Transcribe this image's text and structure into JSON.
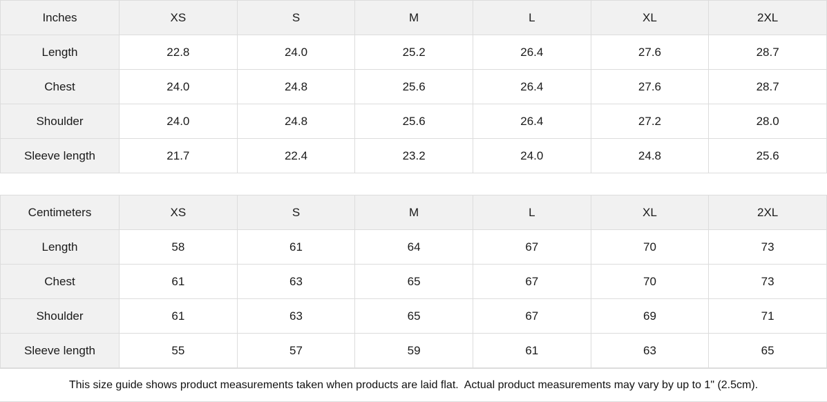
{
  "colors": {
    "header_bg": "#f1f1f1",
    "border": "#dcdcdc",
    "text": "#1a1a1a",
    "page_bg": "#ffffff"
  },
  "tables": [
    {
      "unit_label": "Inches",
      "columns": [
        "XS",
        "S",
        "M",
        "L",
        "XL",
        "2XL"
      ],
      "rows": [
        {
          "label": "Length",
          "values": [
            "22.8",
            "24.0",
            "25.2",
            "26.4",
            "27.6",
            "28.7"
          ]
        },
        {
          "label": "Chest",
          "values": [
            "24.0",
            "24.8",
            "25.6",
            "26.4",
            "27.6",
            "28.7"
          ]
        },
        {
          "label": "Shoulder",
          "values": [
            "24.0",
            "24.8",
            "25.6",
            "26.4",
            "27.2",
            "28.0"
          ]
        },
        {
          "label": "Sleeve length",
          "values": [
            "21.7",
            "22.4",
            "23.2",
            "24.0",
            "24.8",
            "25.6"
          ]
        }
      ]
    },
    {
      "unit_label": "Centimeters",
      "columns": [
        "XS",
        "S",
        "M",
        "L",
        "XL",
        "2XL"
      ],
      "rows": [
        {
          "label": "Length",
          "values": [
            "58",
            "61",
            "64",
            "67",
            "70",
            "73"
          ]
        },
        {
          "label": "Chest",
          "values": [
            "61",
            "63",
            "65",
            "67",
            "70",
            "73"
          ]
        },
        {
          "label": "Shoulder",
          "values": [
            "61",
            "63",
            "65",
            "67",
            "69",
            "71"
          ]
        },
        {
          "label": "Sleeve length",
          "values": [
            "55",
            "57",
            "59",
            "61",
            "63",
            "65"
          ]
        }
      ]
    }
  ],
  "footer": {
    "note": "This size guide shows product measurements taken when products are laid flat.  Actual product measurements may vary by up to 1\" (2.5cm)."
  }
}
